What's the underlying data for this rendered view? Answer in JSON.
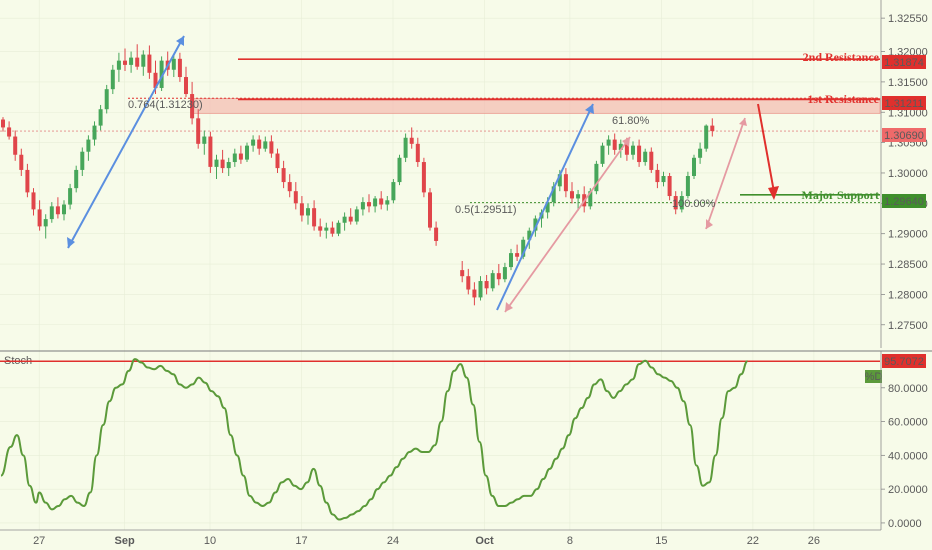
{
  "chart_data": [
    {
      "type": "candlestick",
      "price_axis": {
        "ticks": [
          "1.32550",
          "1.32000",
          "1.31500",
          "1.31000",
          "1.30500",
          "1.30000",
          "1.29500",
          "1.29000",
          "1.28500",
          "1.28000",
          "1.27500"
        ],
        "tick_values": [
          1.3255,
          1.32,
          1.315,
          1.31,
          1.305,
          1.3,
          1.295,
          1.29,
          1.285,
          1.28,
          1.275
        ],
        "ylim": [
          1.2715,
          1.3275
        ]
      },
      "date_axis": {
        "ticks": [
          "27",
          "Sep",
          "10",
          "17",
          "24",
          "Oct",
          "8",
          "15",
          "22",
          "26"
        ],
        "tick_bar_index": [
          2,
          16,
          30,
          45,
          60,
          75,
          89,
          104,
          119,
          129
        ]
      },
      "candles": [
        [
          1.3088,
          1.3092,
          1.3068,
          1.3075
        ],
        [
          1.3075,
          1.3085,
          1.3055,
          1.306
        ],
        [
          1.306,
          1.307,
          1.302,
          1.303
        ],
        [
          1.303,
          1.304,
          1.2995,
          1.3005
        ],
        [
          1.3005,
          1.3015,
          1.296,
          1.2968
        ],
        [
          1.2968,
          1.2975,
          1.293,
          1.294
        ],
        [
          1.294,
          1.2955,
          1.2905,
          1.2912
        ],
        [
          1.2912,
          1.2932,
          1.2892,
          1.2924
        ],
        [
          1.2924,
          1.2952,
          1.2918,
          1.2945
        ],
        [
          1.2945,
          1.296,
          1.2925,
          1.2932
        ],
        [
          1.2932,
          1.2955,
          1.2922,
          1.2948
        ],
        [
          1.2948,
          1.2982,
          1.294,
          1.2975
        ],
        [
          1.2975,
          1.3012,
          1.2968,
          1.3005
        ],
        [
          1.3005,
          1.3042,
          1.2995,
          1.3035
        ],
        [
          1.3035,
          1.3062,
          1.302,
          1.3055
        ],
        [
          1.3055,
          1.3085,
          1.3045,
          1.3078
        ],
        [
          1.3078,
          1.3112,
          1.307,
          1.3105
        ],
        [
          1.3105,
          1.3145,
          1.3098,
          1.3138
        ],
        [
          1.3138,
          1.3178,
          1.313,
          1.317
        ],
        [
          1.317,
          1.3198,
          1.315,
          1.3185
        ],
        [
          1.3185,
          1.3205,
          1.3168,
          1.3178
        ],
        [
          1.3178,
          1.32,
          1.3165,
          1.319
        ],
        [
          1.319,
          1.3212,
          1.317,
          1.3175
        ],
        [
          1.3175,
          1.3202,
          1.316,
          1.3195
        ],
        [
          1.3195,
          1.321,
          1.3155,
          1.3165
        ],
        [
          1.3165,
          1.3185,
          1.313,
          1.314
        ],
        [
          1.314,
          1.3192,
          1.3135,
          1.3185
        ],
        [
          1.3185,
          1.32,
          1.316,
          1.317
        ],
        [
          1.317,
          1.3195,
          1.3158,
          1.3188
        ],
        [
          1.3188,
          1.3198,
          1.315,
          1.3158
        ],
        [
          1.3158,
          1.3175,
          1.3125,
          1.313
        ],
        [
          1.313,
          1.315,
          1.308,
          1.309
        ],
        [
          1.309,
          1.3105,
          1.304,
          1.3048
        ],
        [
          1.3048,
          1.307,
          1.303,
          1.306
        ],
        [
          1.306,
          1.3068,
          1.3,
          1.301
        ],
        [
          1.301,
          1.303,
          1.299,
          1.3022
        ],
        [
          1.3022,
          1.3038,
          1.3,
          1.3008
        ],
        [
          1.3008,
          1.3025,
          1.2995,
          1.3018
        ],
        [
          1.3018,
          1.304,
          1.301,
          1.3032
        ],
        [
          1.3032,
          1.3045,
          1.3015,
          1.3022
        ],
        [
          1.3022,
          1.305,
          1.3018,
          1.3045
        ],
        [
          1.3045,
          1.3062,
          1.3035,
          1.3055
        ],
        [
          1.3055,
          1.3062,
          1.303,
          1.304
        ],
        [
          1.304,
          1.306,
          1.3035,
          1.3052
        ],
        [
          1.3052,
          1.3062,
          1.3025,
          1.3032
        ],
        [
          1.3032,
          1.304,
          1.3,
          1.3008
        ],
        [
          1.3008,
          1.302,
          1.2975,
          1.2985
        ],
        [
          1.2985,
          1.2998,
          1.296,
          1.297
        ],
        [
          1.297,
          1.2985,
          1.294,
          1.295
        ],
        [
          1.295,
          1.2962,
          1.292,
          1.293
        ],
        [
          1.293,
          1.295,
          1.2915,
          1.2942
        ],
        [
          1.2942,
          1.2955,
          1.2905,
          1.2912
        ],
        [
          1.2912,
          1.2925,
          1.2895,
          1.2905
        ],
        [
          1.2905,
          1.2918,
          1.2892,
          1.291
        ],
        [
          1.291,
          1.292,
          1.2895,
          1.29
        ],
        [
          1.29,
          1.2922,
          1.2896,
          1.2918
        ],
        [
          1.2918,
          1.2935,
          1.2905,
          1.2928
        ],
        [
          1.2928,
          1.2942,
          1.2915,
          1.292
        ],
        [
          1.292,
          1.2945,
          1.2915,
          1.294
        ],
        [
          1.294,
          1.296,
          1.293,
          1.2952
        ],
        [
          1.2952,
          1.2965,
          1.2935,
          1.2945
        ],
        [
          1.2945,
          1.2962,
          1.2935,
          1.2958
        ],
        [
          1.2958,
          1.297,
          1.294,
          1.2948
        ],
        [
          1.2948,
          1.2962,
          1.2938,
          1.2955
        ],
        [
          1.2955,
          1.299,
          1.295,
          1.2985
        ],
        [
          1.2985,
          1.303,
          1.298,
          1.3025
        ],
        [
          1.3025,
          1.3065,
          1.3018,
          1.3058
        ],
        [
          1.3058,
          1.3075,
          1.304,
          1.3048
        ],
        [
          1.3048,
          1.3058,
          1.301,
          1.3018
        ],
        [
          1.3018,
          1.3025,
          1.296,
          1.2968
        ],
        [
          1.2968,
          1.2975,
          1.2905,
          1.291
        ],
        [
          1.291,
          1.292,
          1.288,
          1.2888
        ],
        [
          1.284,
          1.2855,
          1.282,
          1.283
        ],
        [
          1.283,
          1.2842,
          1.28,
          1.2808
        ],
        [
          1.2808,
          1.282,
          1.2782,
          1.2795
        ],
        [
          1.2795,
          1.283,
          1.279,
          1.2822
        ],
        [
          1.2822,
          1.2832,
          1.28,
          1.281
        ],
        [
          1.281,
          1.284,
          1.2805,
          1.2835
        ],
        [
          1.2835,
          1.285,
          1.2815,
          1.2825
        ],
        [
          1.2825,
          1.2852,
          1.282,
          1.2845
        ],
        [
          1.2845,
          1.2875,
          1.284,
          1.2868
        ],
        [
          1.2868,
          1.2882,
          1.2855,
          1.2862
        ],
        [
          1.2862,
          1.2895,
          1.2858,
          1.289
        ],
        [
          1.289,
          1.291,
          1.2875,
          1.2905
        ],
        [
          1.2905,
          1.293,
          1.2895,
          1.2925
        ],
        [
          1.2925,
          1.294,
          1.291,
          1.2935
        ],
        [
          1.2935,
          1.296,
          1.2925,
          1.2952
        ],
        [
          1.2952,
          1.2985,
          1.2945,
          1.2978
        ],
        [
          1.2978,
          1.3005,
          1.297,
          1.2998
        ],
        [
          1.2998,
          1.3008,
          1.296,
          1.297
        ],
        [
          1.297,
          1.2985,
          1.295,
          1.2958
        ],
        [
          1.2958,
          1.2972,
          1.2938,
          1.2965
        ],
        [
          1.2965,
          1.2978,
          1.2935,
          1.2945
        ],
        [
          1.2945,
          1.2975,
          1.294,
          1.297
        ],
        [
          1.297,
          1.302,
          1.2965,
          1.3015
        ],
        [
          1.3015,
          1.305,
          1.301,
          1.3045
        ],
        [
          1.3045,
          1.3062,
          1.303,
          1.3055
        ],
        [
          1.3055,
          1.3065,
          1.303,
          1.3038
        ],
        [
          1.3038,
          1.3055,
          1.3025,
          1.3048
        ],
        [
          1.3048,
          1.3058,
          1.302,
          1.303
        ],
        [
          1.303,
          1.3052,
          1.3022,
          1.3045
        ],
        [
          1.3045,
          1.3055,
          1.301,
          1.3018
        ],
        [
          1.3018,
          1.304,
          1.3012,
          1.3035
        ],
        [
          1.3035,
          1.3042,
          1.3,
          1.3005
        ],
        [
          1.3005,
          1.3015,
          1.2975,
          1.2985
        ],
        [
          1.2985,
          1.3002,
          1.2978,
          1.2995
        ],
        [
          1.2995,
          1.3,
          1.2955,
          1.2962
        ],
        [
          1.2962,
          1.297,
          1.2932,
          1.294
        ],
        [
          1.294,
          1.297,
          1.2935,
          1.2962
        ],
        [
          1.2962,
          1.3002,
          1.2958,
          1.2995
        ],
        [
          1.2995,
          1.303,
          1.299,
          1.3025
        ],
        [
          1.3025,
          1.305,
          1.3015,
          1.304
        ],
        [
          1.304,
          1.308,
          1.3035,
          1.3078
        ],
        [
          1.3078,
          1.309,
          1.306,
          1.3069
        ]
      ],
      "horizontal_levels": [
        {
          "name": "2nd Resistance",
          "value": 1.31874,
          "value_label": "1.31874",
          "color": "#e0302d"
        },
        {
          "name": "1st Resistance",
          "value": 1.31211,
          "value_label": "1.31211",
          "color": "#e0302d"
        },
        {
          "name": "Major Support",
          "value": 1.2964,
          "value_label": "1.29640",
          "color": "#3f8f2c"
        }
      ],
      "last_price": {
        "value": 1.3069,
        "value_label": "1.30690",
        "color": "#ef6a6a"
      },
      "resistance_zone": {
        "low": 1.3098,
        "high": 1.3123
      },
      "fib_labels": [
        {
          "text": "0.764(1.31230)",
          "color": "#d04a32"
        },
        {
          "text": "61.80%",
          "color": "#c9853a"
        },
        {
          "text": "0.5(1.29511)",
          "color": "#5a5a5a"
        },
        {
          "text": "100.00%",
          "color": "#8cb47a"
        }
      ],
      "projection_arrow_color": "#e0302d"
    },
    {
      "type": "line",
      "indicator_label": "Stoch",
      "series_label": "%D",
      "series_color": "#5b9a3a",
      "last_value_label": "95.7072",
      "y_axis": {
        "ticks": [
          "80.0000",
          "60.0000",
          "40.0000",
          "20.0000",
          "0.0000"
        ],
        "tick_values": [
          80,
          60,
          40,
          20,
          0
        ],
        "ylim": [
          -3,
          100
        ]
      },
      "values": [
        [
          0,
          28
        ],
        [
          3,
          45
        ],
        [
          5,
          52
        ],
        [
          7,
          40
        ],
        [
          9,
          22
        ],
        [
          11,
          12
        ],
        [
          12,
          18
        ],
        [
          14,
          12
        ],
        [
          16,
          8
        ],
        [
          18,
          10
        ],
        [
          20,
          14
        ],
        [
          22,
          16
        ],
        [
          24,
          12
        ],
        [
          26,
          10
        ],
        [
          28,
          18
        ],
        [
          30,
          40
        ],
        [
          32,
          58
        ],
        [
          34,
          72
        ],
        [
          36,
          80
        ],
        [
          38,
          82
        ],
        [
          40,
          90
        ],
        [
          42,
          97
        ],
        [
          44,
          95
        ],
        [
          46,
          92
        ],
        [
          48,
          91
        ],
        [
          50,
          93
        ],
        [
          52,
          90
        ],
        [
          54,
          88
        ],
        [
          56,
          82
        ],
        [
          58,
          80
        ],
        [
          60,
          82
        ],
        [
          62,
          86
        ],
        [
          64,
          83
        ],
        [
          66,
          78
        ],
        [
          68,
          75
        ],
        [
          70,
          68
        ],
        [
          72,
          52
        ],
        [
          74,
          40
        ],
        [
          76,
          28
        ],
        [
          78,
          16
        ],
        [
          80,
          12
        ],
        [
          82,
          10
        ],
        [
          84,
          12
        ],
        [
          86,
          18
        ],
        [
          88,
          24
        ],
        [
          90,
          26
        ],
        [
          92,
          22
        ],
        [
          94,
          20
        ],
        [
          96,
          24
        ],
        [
          98,
          32
        ],
        [
          100,
          22
        ],
        [
          102,
          12
        ],
        [
          104,
          5
        ],
        [
          106,
          2
        ],
        [
          108,
          3
        ],
        [
          110,
          5
        ],
        [
          112,
          7
        ],
        [
          114,
          10
        ],
        [
          116,
          14
        ],
        [
          118,
          20
        ],
        [
          120,
          24
        ],
        [
          122,
          28
        ],
        [
          124,
          33
        ],
        [
          126,
          38
        ],
        [
          128,
          42
        ],
        [
          130,
          44
        ],
        [
          132,
          42
        ],
        [
          134,
          42
        ],
        [
          136,
          46
        ],
        [
          138,
          60
        ],
        [
          140,
          78
        ],
        [
          142,
          90
        ],
        [
          144,
          94
        ],
        [
          146,
          86
        ],
        [
          148,
          70
        ],
        [
          150,
          48
        ],
        [
          152,
          28
        ],
        [
          154,
          16
        ],
        [
          156,
          10
        ],
        [
          158,
          10
        ],
        [
          160,
          12
        ],
        [
          162,
          14
        ],
        [
          164,
          16
        ],
        [
          166,
          16
        ],
        [
          168,
          20
        ],
        [
          170,
          26
        ],
        [
          172,
          32
        ],
        [
          174,
          38
        ],
        [
          176,
          44
        ],
        [
          178,
          52
        ],
        [
          180,
          62
        ],
        [
          182,
          68
        ],
        [
          184,
          74
        ],
        [
          186,
          82
        ],
        [
          188,
          85
        ],
        [
          190,
          78
        ],
        [
          192,
          74
        ],
        [
          194,
          78
        ],
        [
          196,
          82
        ],
        [
          198,
          85
        ],
        [
          200,
          94
        ],
        [
          202,
          96
        ],
        [
          204,
          92
        ],
        [
          206,
          88
        ],
        [
          208,
          86
        ],
        [
          210,
          84
        ],
        [
          212,
          80
        ],
        [
          214,
          72
        ],
        [
          216,
          58
        ],
        [
          218,
          34
        ],
        [
          220,
          22
        ],
        [
          222,
          24
        ],
        [
          224,
          40
        ],
        [
          226,
          62
        ],
        [
          228,
          78
        ],
        [
          230,
          80
        ],
        [
          232,
          88
        ],
        [
          234,
          95.7
        ]
      ],
      "reference_level": 95.7072
    }
  ]
}
